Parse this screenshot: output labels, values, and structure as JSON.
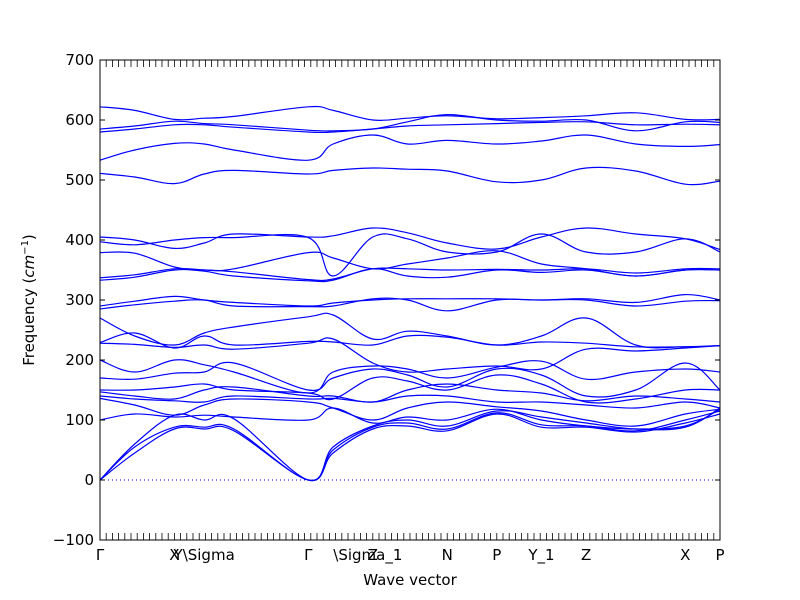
{
  "chart_data": {
    "type": "line",
    "xlabel": "Wave vector",
    "ylabel": "Frequency ",
    "ylabel_unit_base": "cm",
    "ylabel_unit_exp": "−1",
    "ylim": [
      -100,
      700
    ],
    "yticks": [
      -100,
      0,
      100,
      200,
      300,
      400,
      500,
      600,
      700
    ],
    "grid": false,
    "line_color": "#0000ff",
    "zero_line": {
      "y": 0,
      "style": "dotted",
      "color": "#0000ff"
    },
    "x_labels": [
      {
        "label": "Γ",
        "x": 0.0
      },
      {
        "label": "X",
        "x": 0.75
      },
      {
        "label": "Y\\Sigma",
        "x": 1.05
      },
      {
        "label": "Γ",
        "x": 2.1
      },
      {
        "label": "Z",
        "x": 2.75
      },
      {
        "label": "\\Sigma_1",
        "x": 2.7
      },
      {
        "label": "N",
        "x": 3.5
      },
      {
        "label": "P",
        "x": 4.0
      },
      {
        "label": "Y_1",
        "x": 4.45
      },
      {
        "label": "Z",
        "x": 4.9
      },
      {
        "label": "X",
        "x": 5.9
      },
      {
        "label": "P",
        "x": 6.25
      }
    ],
    "xlim": [
      0.0,
      6.25
    ],
    "series_x": [
      0.0,
      0.35,
      0.75,
      1.05,
      1.35,
      2.1,
      2.35,
      2.75,
      3.1,
      3.5,
      4.0,
      4.45,
      4.9,
      5.4,
      5.9,
      6.25
    ],
    "series": [
      {
        "values": [
          622,
          616,
          601,
          603,
          606,
          622,
          616,
          600,
          603,
          607,
          602,
          604,
          607,
          612,
          601,
          601
        ]
      },
      {
        "values": [
          585,
          590,
          598,
          594,
          592,
          583,
          582,
          585,
          597,
          609,
          600,
          598,
          600,
          582,
          597,
          596
        ]
      },
      {
        "values": [
          580,
          585,
          592,
          592,
          588,
          580,
          580,
          585,
          590,
          592,
          594,
          596,
          597,
          592,
          593,
          592
        ]
      },
      {
        "values": [
          533,
          550,
          561,
          560,
          550,
          533,
          560,
          575,
          560,
          566,
          560,
          565,
          575,
          560,
          556,
          559
        ]
      },
      {
        "values": [
          511,
          505,
          494,
          510,
          516,
          510,
          516,
          520,
          518,
          515,
          497,
          500,
          520,
          515,
          493,
          498
        ]
      },
      {
        "values": [
          405,
          400,
          386,
          395,
          410,
          405,
          407,
          420,
          412,
          395,
          385,
          405,
          420,
          410,
          402,
          384
        ]
      },
      {
        "values": [
          397,
          392,
          400,
          404,
          404,
          404,
          340,
          405,
          402,
          380,
          380,
          410,
          380,
          380,
          402,
          380
        ]
      },
      {
        "values": [
          379,
          378,
          355,
          350,
          352,
          379,
          370,
          352,
          360,
          370,
          382,
          360,
          352,
          340,
          350,
          350
        ]
      },
      {
        "values": [
          337,
          342,
          352,
          350,
          347,
          334,
          335,
          352,
          352,
          350,
          351,
          350,
          352,
          345,
          352,
          352
        ]
      },
      {
        "values": [
          333,
          338,
          350,
          348,
          340,
          332,
          333,
          352,
          340,
          338,
          350,
          346,
          350,
          340,
          350,
          350
        ]
      },
      {
        "values": [
          290,
          298,
          306,
          300,
          296,
          290,
          295,
          300,
          302,
          302,
          302,
          300,
          302,
          296,
          309,
          300
        ]
      },
      {
        "values": [
          285,
          292,
          298,
          300,
          290,
          289,
          290,
          302,
          300,
          282,
          300,
          300,
          300,
          290,
          298,
          299
        ]
      },
      {
        "values": [
          270,
          240,
          225,
          245,
          255,
          272,
          275,
          235,
          248,
          240,
          225,
          240,
          270,
          225,
          222,
          224
        ]
      },
      {
        "values": [
          229,
          245,
          220,
          240,
          225,
          231,
          230,
          225,
          240,
          238,
          225,
          230,
          228,
          222,
          222,
          224
        ]
      },
      {
        "values": [
          228,
          226,
          221,
          225,
          218,
          228,
          235,
          195,
          180,
          185,
          190,
          185,
          218,
          215,
          220,
          224
        ]
      },
      {
        "values": [
          200,
          180,
          200,
          192,
          180,
          145,
          180,
          190,
          185,
          170,
          188,
          198,
          168,
          180,
          185,
          180
        ]
      },
      {
        "values": [
          170,
          168,
          178,
          180,
          195,
          150,
          170,
          185,
          175,
          155,
          185,
          175,
          140,
          150,
          195,
          150
        ]
      },
      {
        "values": [
          150,
          150,
          155,
          160,
          150,
          145,
          135,
          170,
          165,
          150,
          175,
          160,
          130,
          135,
          150,
          150
        ]
      },
      {
        "values": [
          147,
          140,
          135,
          150,
          155,
          140,
          140,
          130,
          150,
          160,
          150,
          145,
          132,
          140,
          135,
          130
        ]
      },
      {
        "values": [
          140,
          135,
          132,
          130,
          140,
          135,
          136,
          130,
          140,
          140,
          130,
          130,
          125,
          120,
          130,
          120
        ]
      },
      {
        "values": [
          136,
          125,
          108,
          125,
          135,
          130,
          120,
          100,
          120,
          130,
          122,
          115,
          100,
          90,
          110,
          118
        ]
      },
      {
        "values": [
          100,
          110,
          105,
          108,
          105,
          100,
          120,
          95,
          105,
          100,
          118,
          100,
          90,
          85,
          90,
          118
        ]
      },
      {
        "values": [
          0,
          60,
          108,
          100,
          102,
          0,
          55,
          90,
          100,
          90,
          115,
          105,
          95,
          85,
          88,
          120
        ]
      },
      {
        "values": [
          0,
          55,
          88,
          88,
          85,
          0,
          50,
          88,
          95,
          85,
          112,
          92,
          90,
          82,
          100,
          115
        ]
      },
      {
        "values": [
          0,
          45,
          85,
          85,
          82,
          0,
          45,
          85,
          90,
          82,
          110,
          88,
          88,
          80,
          95,
          110
        ]
      }
    ]
  }
}
